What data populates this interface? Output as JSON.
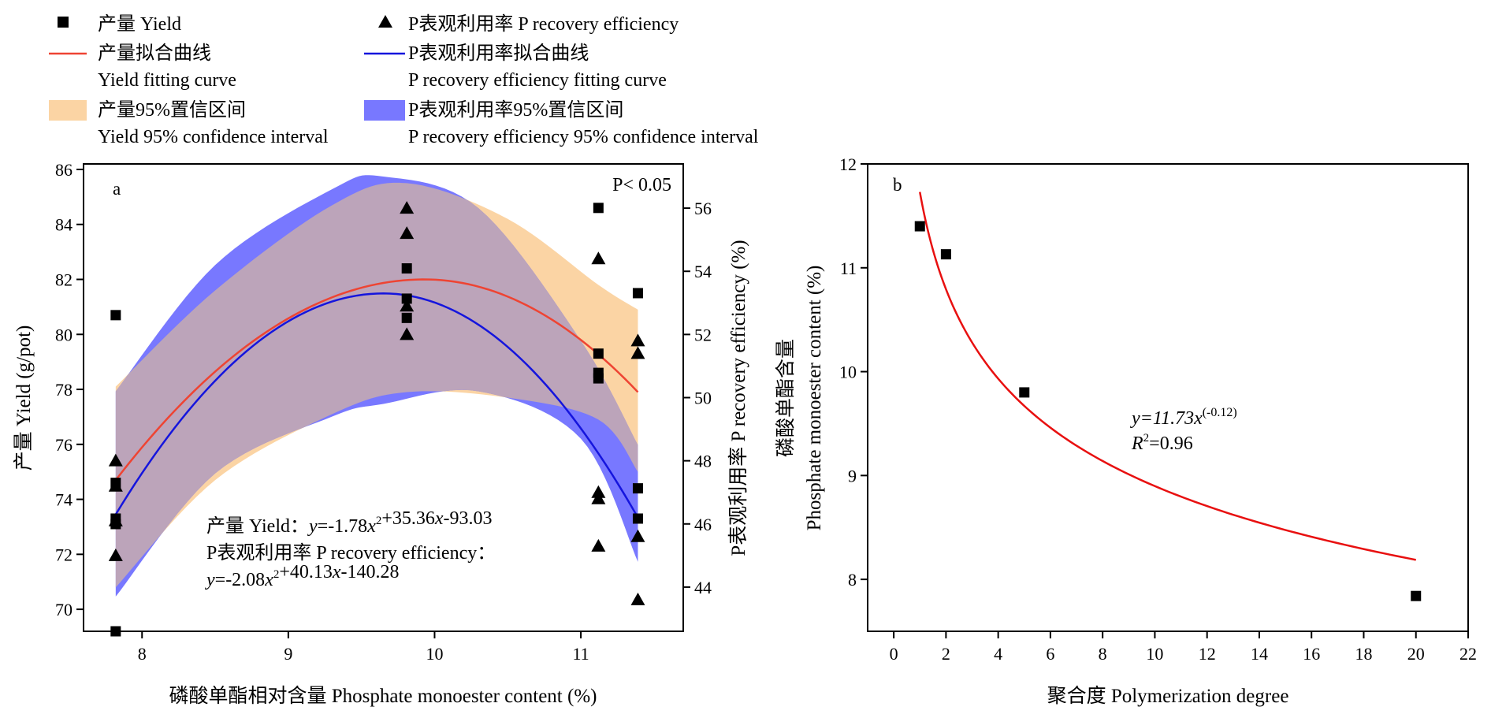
{
  "legend": {
    "yield_points": "产量 Yield",
    "p_points": "P表观利用率 P recovery efficiency",
    "yield_curve_line1": "产量拟合曲线",
    "yield_curve_line2": "Yield fitting curve",
    "p_curve_line1": "P表观利用率拟合曲线",
    "p_curve_line2": "P recovery efficiency fitting curve",
    "yield_ci_line1": "产量95%置信区间",
    "yield_ci_line2": "Yield 95% confidence interval",
    "p_ci_line1": "P表观利用率95%置信区间",
    "p_ci_line2": "P recovery efficiency 95% confidence interval"
  },
  "colors": {
    "yield_curve": "#ee4433",
    "p_curve": "#1515dd",
    "yield_ci": "#fbd4a4",
    "p_ci": "#7878ff",
    "overlap_ci": "#bca4ba",
    "fit_b": "#e81010"
  },
  "chart_data": [
    {
      "type": "scatter",
      "panel": "a",
      "significance": "P< 0.05",
      "xlabel": "磷酸单酯相对含量 Phosphate monoester content (%)",
      "ylabel": "产量 Yield (g/pot)",
      "y2label": "P表观利用率 P recovery efficiency (%)",
      "xlim": [
        7.6,
        11.7
      ],
      "ylim": [
        69.2,
        86.2
      ],
      "y2lim": [
        42.6,
        57.4
      ],
      "xticks": [
        8,
        9,
        10,
        11
      ],
      "yticks": [
        70,
        72,
        74,
        76,
        78,
        80,
        82,
        84,
        86
      ],
      "y2ticks": [
        44,
        46,
        48,
        50,
        52,
        54,
        56
      ],
      "grid": false,
      "legend_position": "top",
      "equation_lines": [
        {
          "lead": "产量 Yield：",
          "text": "y=-1.78x²+35.36x-93.03"
        },
        {
          "lead": "P表观利用率 P recovery efficiency：",
          "text": ""
        },
        {
          "lead": "",
          "text": "y=-2.08x²+40.13x-140.28"
        }
      ],
      "series": [
        {
          "name": "产量 Yield",
          "marker": "square",
          "axis": "left",
          "points": [
            [
              7.82,
              80.7
            ],
            [
              7.82,
              74.6
            ],
            [
              7.82,
              73.3
            ],
            [
              7.82,
              73.1
            ],
            [
              7.82,
              69.2
            ],
            [
              9.81,
              82.4
            ],
            [
              9.81,
              81.3
            ],
            [
              9.81,
              80.6
            ],
            [
              11.12,
              84.6
            ],
            [
              11.12,
              79.3
            ],
            [
              11.12,
              78.6
            ],
            [
              11.12,
              78.4
            ],
            [
              11.39,
              81.5
            ],
            [
              11.39,
              74.4
            ],
            [
              11.39,
              73.3
            ]
          ]
        },
        {
          "name": "P表观利用率 P recovery efficiency",
          "marker": "triangle",
          "axis": "right",
          "points": [
            [
              7.82,
              48.0
            ],
            [
              7.82,
              47.2
            ],
            [
              7.82,
              46.1
            ],
            [
              7.82,
              45.0
            ],
            [
              9.81,
              56.0
            ],
            [
              9.81,
              55.2
            ],
            [
              9.81,
              52.9
            ],
            [
              9.81,
              52.0
            ],
            [
              11.12,
              54.4
            ],
            [
              11.12,
              47.0
            ],
            [
              11.12,
              46.8
            ],
            [
              11.12,
              45.3
            ],
            [
              11.39,
              51.8
            ],
            [
              11.39,
              51.4
            ],
            [
              11.39,
              45.6
            ],
            [
              11.39,
              43.6
            ]
          ]
        }
      ],
      "fits": [
        {
          "name": "产量拟合曲线",
          "axis": "left",
          "x_range": [
            7.82,
            11.39
          ],
          "peak_x": 9.93,
          "peak_y": 82.0,
          "end_y": [
            74.7,
            77.9
          ]
        },
        {
          "name": "P表观利用率拟合曲线",
          "axis": "right",
          "x_range": [
            7.82,
            11.39
          ],
          "peak_x": 9.65,
          "peak_y": 53.3,
          "end_y": [
            46.3,
            46.2
          ]
        }
      ],
      "confidence_bands": [
        {
          "name": "产量95%置信区间",
          "axis": "left",
          "x": [
            7.82,
            8.5,
            9.3,
            9.81,
            10.5,
            11.12,
            11.39
          ],
          "upper": [
            78.1,
            81.6,
            84.7,
            85.5,
            84.2,
            81.8,
            80.9
          ],
          "lower": [
            70.8,
            74.7,
            77.1,
            77.9,
            77.7,
            76.9,
            75.0
          ]
        },
        {
          "name": "P表观利用率95%置信区间",
          "axis": "right",
          "x": [
            7.82,
            8.5,
            9.3,
            9.65,
            10.3,
            11.0,
            11.39
          ],
          "upper": [
            50.2,
            54.2,
            56.6,
            57.0,
            56.0,
            51.8,
            48.5
          ],
          "lower": [
            43.7,
            47.6,
            49.4,
            49.8,
            50.2,
            48.7,
            44.8
          ]
        }
      ]
    },
    {
      "type": "scatter",
      "panel": "b",
      "xlabel": "聚合度 Polymerization degree",
      "ylabel_line1": "磷酸单酯含量",
      "ylabel_line2": "Phosphate monoester content (%)",
      "xlim": [
        -1,
        22
      ],
      "ylim": [
        7.5,
        12
      ],
      "xticks": [
        0,
        2,
        4,
        6,
        8,
        10,
        12,
        14,
        16,
        18,
        20,
        22
      ],
      "yticks": [
        8,
        9,
        10,
        11,
        12
      ],
      "grid": false,
      "equation_y": "y=11.73x",
      "equation_exp": "(-0.12)",
      "equation_r": "R",
      "equation_r_exp": "2",
      "equation_r_val": "=0.96",
      "fit": {
        "a": 11.73,
        "b": -0.12,
        "x_range": [
          1,
          20
        ]
      },
      "points": [
        [
          1,
          11.4
        ],
        [
          2,
          11.13
        ],
        [
          5,
          9.8
        ],
        [
          20,
          7.84
        ]
      ]
    }
  ]
}
